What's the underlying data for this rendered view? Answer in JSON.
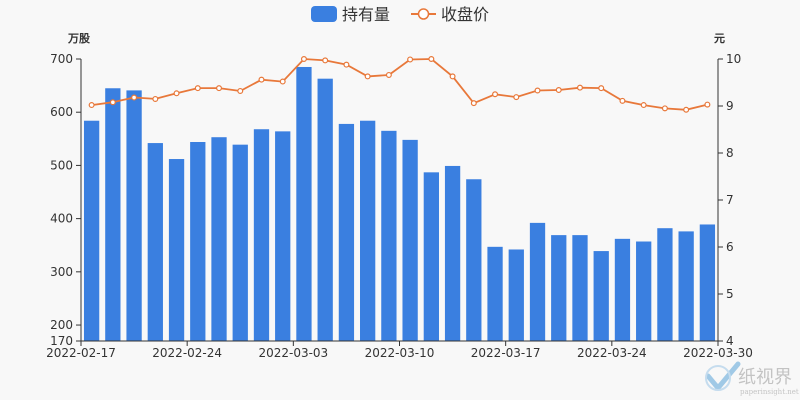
{
  "chart_data": {
    "type": "bar+line",
    "legend": [
      {
        "label": "持有量",
        "color": "#3a7fe0",
        "marker": "bar"
      },
      {
        "label": "收盘价",
        "color": "#e8783a",
        "marker": "line-circle"
      }
    ],
    "legend_position": "top-center",
    "y_left": {
      "unit": "万股",
      "ticks": [
        170,
        200,
        300,
        400,
        500,
        600,
        700
      ],
      "range": [
        170,
        700
      ]
    },
    "y_right": {
      "unit": "元",
      "ticks": [
        4,
        5,
        6,
        7,
        8,
        9,
        10
      ],
      "range": [
        4,
        10
      ]
    },
    "x_ticks": [
      "2022-02-17",
      "2022-02-24",
      "2022-03-03",
      "2022-03-10",
      "2022-03-17",
      "2022-03-24",
      "2022-03-30"
    ],
    "x_tick_indices": [
      0,
      5,
      10,
      15,
      20,
      25,
      29
    ],
    "dates": [
      "2022-02-17",
      "2022-02-18",
      "2022-02-21",
      "2022-02-22",
      "2022-02-23",
      "2022-02-24",
      "2022-02-25",
      "2022-02-28",
      "2022-03-01",
      "2022-03-02",
      "2022-03-03",
      "2022-03-04",
      "2022-03-07",
      "2022-03-08",
      "2022-03-09",
      "2022-03-10",
      "2022-03-11",
      "2022-03-14",
      "2022-03-15",
      "2022-03-16",
      "2022-03-17",
      "2022-03-18",
      "2022-03-21",
      "2022-03-22",
      "2022-03-23",
      "2022-03-24",
      "2022-03-25",
      "2022-03-28",
      "2022-03-29",
      "2022-03-30"
    ],
    "series": [
      {
        "name": "持有量",
        "type": "bar",
        "axis": "left",
        "color": "#3a7fe0",
        "values": [
          584,
          645,
          641,
          542,
          512,
          544,
          553,
          539,
          568,
          564,
          685,
          663,
          578,
          584,
          565,
          548,
          487,
          499,
          474,
          347,
          342,
          392,
          369,
          369,
          339,
          362,
          357,
          382,
          376,
          389
        ]
      },
      {
        "name": "收盘价",
        "type": "line",
        "axis": "right",
        "color": "#e8783a",
        "values": [
          9.02,
          9.08,
          9.18,
          9.15,
          9.27,
          9.38,
          9.38,
          9.32,
          9.56,
          9.52,
          10.0,
          9.97,
          9.88,
          9.63,
          9.66,
          9.99,
          10.0,
          9.63,
          9.06,
          9.25,
          9.19,
          9.33,
          9.34,
          9.39,
          9.38,
          9.11,
          9.02,
          8.95,
          8.92,
          9.03
        ]
      }
    ],
    "grid": false
  },
  "watermark": {
    "text_cn": "纸视界",
    "text_url": "paperinsight.net",
    "icon": "checkmark-logo-icon"
  }
}
